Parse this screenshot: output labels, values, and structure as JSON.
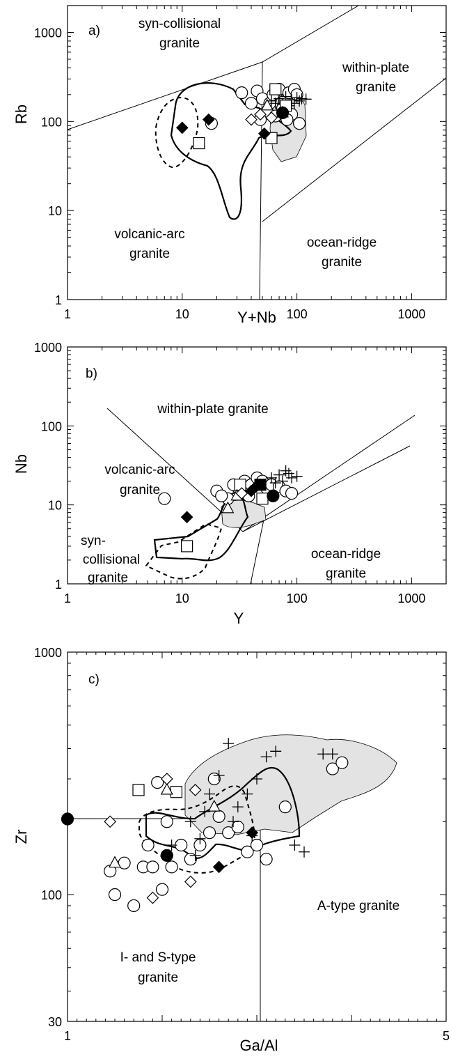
{
  "chart_data": [
    {
      "panel": "a)",
      "type": "scatter",
      "xlabel": "Y+Nb",
      "ylabel": "Rb",
      "x_scale": "log",
      "y_scale": "log",
      "xlim": [
        1,
        2000
      ],
      "ylim": [
        1,
        2000
      ],
      "x_ticks": [
        "1",
        "10",
        "100",
        "1000"
      ],
      "y_ticks": [
        "1",
        "10",
        "100",
        "1000"
      ],
      "region_labels": {
        "syn": [
          "syn-collisional",
          "granite"
        ],
        "wpg": [
          "within-plate",
          "granite"
        ],
        "vag": [
          "volcanic-arc",
          "granite"
        ],
        "org": [
          "ocean-ridge",
          "granite"
        ]
      },
      "series": [
        {
          "marker": "circle-open",
          "points": [
            [
              33,
              210
            ],
            [
              45,
              220
            ],
            [
              50,
              180
            ],
            [
              58,
              160
            ],
            [
              62,
              200
            ],
            [
              70,
              230
            ],
            [
              78,
              170
            ],
            [
              85,
              210
            ],
            [
              95,
              230
            ],
            [
              100,
              200
            ],
            [
              40,
              160
            ],
            [
              55,
              130
            ],
            [
              65,
              115
            ],
            [
              48,
              105
            ],
            [
              75,
              140
            ],
            [
              90,
              120
            ],
            [
              105,
              95
            ],
            [
              82,
              105
            ],
            [
              18,
              95
            ]
          ]
        },
        {
          "marker": "plus",
          "points": [
            [
              60,
              170
            ],
            [
              70,
              180
            ],
            [
              80,
              190
            ],
            [
              90,
              175
            ],
            [
              100,
              185
            ],
            [
              110,
              180
            ],
            [
              120,
              178
            ],
            [
              85,
              150
            ],
            [
              95,
              160
            ],
            [
              75,
              155
            ],
            [
              65,
              160
            ],
            [
              105,
              170
            ]
          ]
        },
        {
          "marker": "square-open",
          "points": [
            [
              14,
              57
            ],
            [
              65,
              230
            ],
            [
              60,
              65
            ],
            [
              80,
              150
            ]
          ]
        },
        {
          "marker": "triangle-open",
          "points": [
            [
              55,
              150
            ],
            [
              75,
              125
            ]
          ]
        },
        {
          "marker": "diamond-open",
          "points": [
            [
              40,
              105
            ],
            [
              48,
              120
            ],
            [
              60,
              110
            ]
          ]
        },
        {
          "marker": "diamond-filled",
          "points": [
            [
              10,
              85
            ],
            [
              17,
              105
            ],
            [
              52,
              73
            ]
          ]
        },
        {
          "marker": "circle-filled",
          "points": [
            [
              75,
              125
            ]
          ]
        }
      ]
    },
    {
      "panel": "b)",
      "type": "scatter",
      "xlabel": "Y",
      "ylabel": "Nb",
      "x_scale": "log",
      "y_scale": "log",
      "xlim": [
        1,
        2000
      ],
      "ylim": [
        1,
        1000
      ],
      "x_ticks": [
        "1",
        "10",
        "100",
        "1000"
      ],
      "y_ticks": [
        "1",
        "10",
        "100",
        "1000"
      ],
      "region_labels": {
        "wpg": [
          "within-plate granite"
        ],
        "vag": [
          "volcanic-arc",
          "granite"
        ],
        "syn": [
          "syn-",
          "collisional",
          "granite"
        ],
        "org": [
          "ocean-ridge",
          "granite"
        ]
      },
      "series": [
        {
          "marker": "circle-open",
          "points": [
            [
              7,
              12
            ],
            [
              20,
              15
            ],
            [
              25,
              12
            ],
            [
              30,
              17
            ],
            [
              35,
              20
            ],
            [
              40,
              18
            ],
            [
              45,
              22
            ],
            [
              50,
              20
            ],
            [
              55,
              16
            ],
            [
              60,
              18
            ],
            [
              70,
              17
            ],
            [
              80,
              15
            ],
            [
              90,
              14
            ],
            [
              38,
              13
            ],
            [
              28,
              18
            ],
            [
              22,
              13
            ]
          ]
        },
        {
          "marker": "plus",
          "points": [
            [
              60,
              22
            ],
            [
              70,
              24
            ],
            [
              80,
              27
            ],
            [
              90,
              22
            ],
            [
              100,
              23
            ],
            [
              75,
              20
            ],
            [
              65,
              19
            ],
            [
              85,
              25
            ]
          ]
        },
        {
          "marker": "square-open",
          "points": [
            [
              11,
              3
            ],
            [
              50,
              12
            ],
            [
              32,
              18
            ]
          ]
        },
        {
          "marker": "triangle-open",
          "points": [
            [
              30,
              13
            ],
            [
              25,
              9
            ]
          ]
        },
        {
          "marker": "diamond-open",
          "points": [
            [
              33,
              14
            ]
          ]
        },
        {
          "marker": "diamond-filled",
          "points": [
            [
              11,
              7
            ],
            [
              40,
              15
            ],
            [
              44,
              17
            ],
            [
              48,
              18
            ]
          ]
        },
        {
          "marker": "square-filled",
          "points": [
            [
              48,
              18
            ]
          ]
        },
        {
          "marker": "circle-filled",
          "points": [
            [
              62,
              13
            ]
          ]
        }
      ]
    },
    {
      "panel": "c)",
      "type": "scatter",
      "xlabel": "Ga/Al",
      "ylabel": "Zr",
      "x_scale": "linear",
      "y_scale": "log",
      "xlim": [
        1,
        5
      ],
      "ylim": [
        30,
        1000
      ],
      "x_ticks": [
        "1",
        "5"
      ],
      "y_ticks": [
        "30",
        "100",
        "1000"
      ],
      "region_labels": {
        "a_type": [
          "A-type granite"
        ],
        "is_type": [
          "I- and S-type",
          "granite"
        ]
      },
      "series": [
        {
          "marker": "circle-open",
          "points": [
            [
              1.45,
              125
            ],
            [
              1.5,
              100
            ],
            [
              1.6,
              135
            ],
            [
              1.7,
              90
            ],
            [
              1.8,
              130
            ],
            [
              1.85,
              160
            ],
            [
              1.9,
              130
            ],
            [
              1.95,
              290
            ],
            [
              2.0,
              105
            ],
            [
              2.05,
              200
            ],
            [
              2.1,
              130
            ],
            [
              2.2,
              160
            ],
            [
              2.3,
              140
            ],
            [
              2.4,
              160
            ],
            [
              2.5,
              180
            ],
            [
              2.55,
              300
            ],
            [
              2.6,
              210
            ],
            [
              2.7,
              180
            ],
            [
              2.8,
              190
            ],
            [
              2.9,
              150
            ],
            [
              3.0,
              160
            ],
            [
              3.1,
              140
            ],
            [
              3.3,
              230
            ],
            [
              3.8,
              330
            ],
            [
              3.9,
              350
            ]
          ]
        },
        {
          "marker": "plus",
          "points": [
            [
              2.1,
              160
            ],
            [
              2.3,
              200
            ],
            [
              2.4,
              170
            ],
            [
              2.5,
              260
            ],
            [
              2.6,
              310
            ],
            [
              2.7,
              420
            ],
            [
              2.8,
              230
            ],
            [
              2.9,
              260
            ],
            [
              3.0,
              300
            ],
            [
              3.1,
              370
            ],
            [
              3.2,
              390
            ],
            [
              3.4,
              160
            ],
            [
              3.5,
              150
            ],
            [
              3.7,
              380
            ],
            [
              3.8,
              380
            ],
            [
              2.35,
              145
            ],
            [
              2.45,
              220
            ],
            [
              2.75,
              200
            ],
            [
              2.95,
              175
            ]
          ]
        },
        {
          "marker": "square-open",
          "points": [
            [
              1.75,
              270
            ],
            [
              2.15,
              265
            ]
          ]
        },
        {
          "marker": "triangle-open",
          "points": [
            [
              1.5,
              135
            ],
            [
              2.05,
              270
            ],
            [
              2.55,
              230
            ]
          ]
        },
        {
          "marker": "diamond-open",
          "points": [
            [
              1.45,
              200
            ],
            [
              2.05,
              300
            ],
            [
              1.9,
              97
            ],
            [
              2.3,
              113
            ],
            [
              2.35,
              270
            ]
          ]
        },
        {
          "marker": "diamond-filled",
          "points": [
            [
              2.05,
              145
            ],
            [
              2.6,
              130
            ],
            [
              2.95,
              180
            ]
          ]
        },
        {
          "marker": "circle-filled",
          "points": [
            [
              1.0,
              205
            ],
            [
              2.05,
              145
            ]
          ]
        }
      ]
    }
  ]
}
